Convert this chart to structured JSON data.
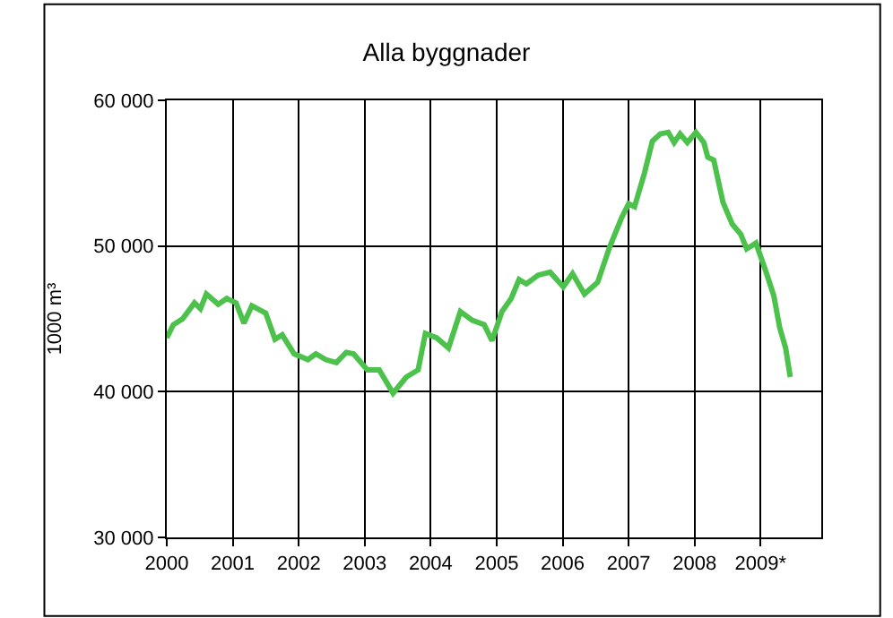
{
  "chart_data": {
    "type": "line",
    "title": "Alla byggnader",
    "ylabel": "1000 m³",
    "x": [
      2000.0,
      2000.1,
      2000.24,
      2000.42,
      2000.51,
      2000.6,
      2000.78,
      2000.91,
      2001.05,
      2001.17,
      2001.29,
      2001.5,
      2001.64,
      2001.75,
      2001.93,
      2002.14,
      2002.26,
      2002.41,
      2002.57,
      2002.72,
      2002.83,
      2003.04,
      2003.22,
      2003.43,
      2003.63,
      2003.81,
      2003.92,
      2004.09,
      2004.27,
      2004.45,
      2004.63,
      2004.81,
      2004.93,
      2005.08,
      2005.22,
      2005.34,
      2005.45,
      2005.63,
      2005.81,
      2006.01,
      2006.15,
      2006.33,
      2006.53,
      2006.71,
      2006.89,
      2007.0,
      2007.09,
      2007.24,
      2007.36,
      2007.48,
      2007.6,
      2007.69,
      2007.78,
      2007.89,
      2008.02,
      2008.14,
      2008.2,
      2008.29,
      2008.43,
      2008.57,
      2008.7,
      2008.79,
      2008.93,
      2009.07,
      2009.2,
      2009.29,
      2009.38,
      2009.45
    ],
    "series": [
      {
        "color": "#4cc24c",
        "values": [
          43700,
          44600,
          45000,
          46100,
          45700,
          46700,
          46000,
          46400,
          46100,
          44700,
          45900,
          45400,
          43600,
          43900,
          42600,
          42200,
          42600,
          42200,
          42000,
          42700,
          42600,
          41500,
          41500,
          39900,
          41000,
          41500,
          44000,
          43700,
          43000,
          45500,
          44900,
          44600,
          43500,
          45500,
          46400,
          47700,
          47400,
          48000,
          48200,
          47200,
          48100,
          46700,
          47500,
          49900,
          51900,
          52900,
          52700,
          55000,
          57200,
          57700,
          57800,
          57100,
          57700,
          57100,
          57800,
          57100,
          56100,
          55900,
          53000,
          51500,
          50800,
          49800,
          50200,
          48400,
          46600,
          44400,
          43000,
          41000
        ]
      }
    ],
    "xlim": [
      2000,
      2009.92
    ],
    "ylim": [
      30000,
      60000
    ],
    "xticks": [
      2000,
      2001,
      2002,
      2003,
      2004,
      2005,
      2006,
      2007,
      2008,
      {
        "value": 2009,
        "label": "2009*"
      }
    ],
    "yticks": [
      {
        "value": 30000,
        "label": "30 000"
      },
      {
        "value": 40000,
        "label": "40 000"
      },
      {
        "value": 50000,
        "label": "50 000"
      },
      {
        "value": 60000,
        "label": "60 000"
      }
    ],
    "grid": true,
    "legend": false,
    "marker": "none",
    "line_style": "solid"
  }
}
